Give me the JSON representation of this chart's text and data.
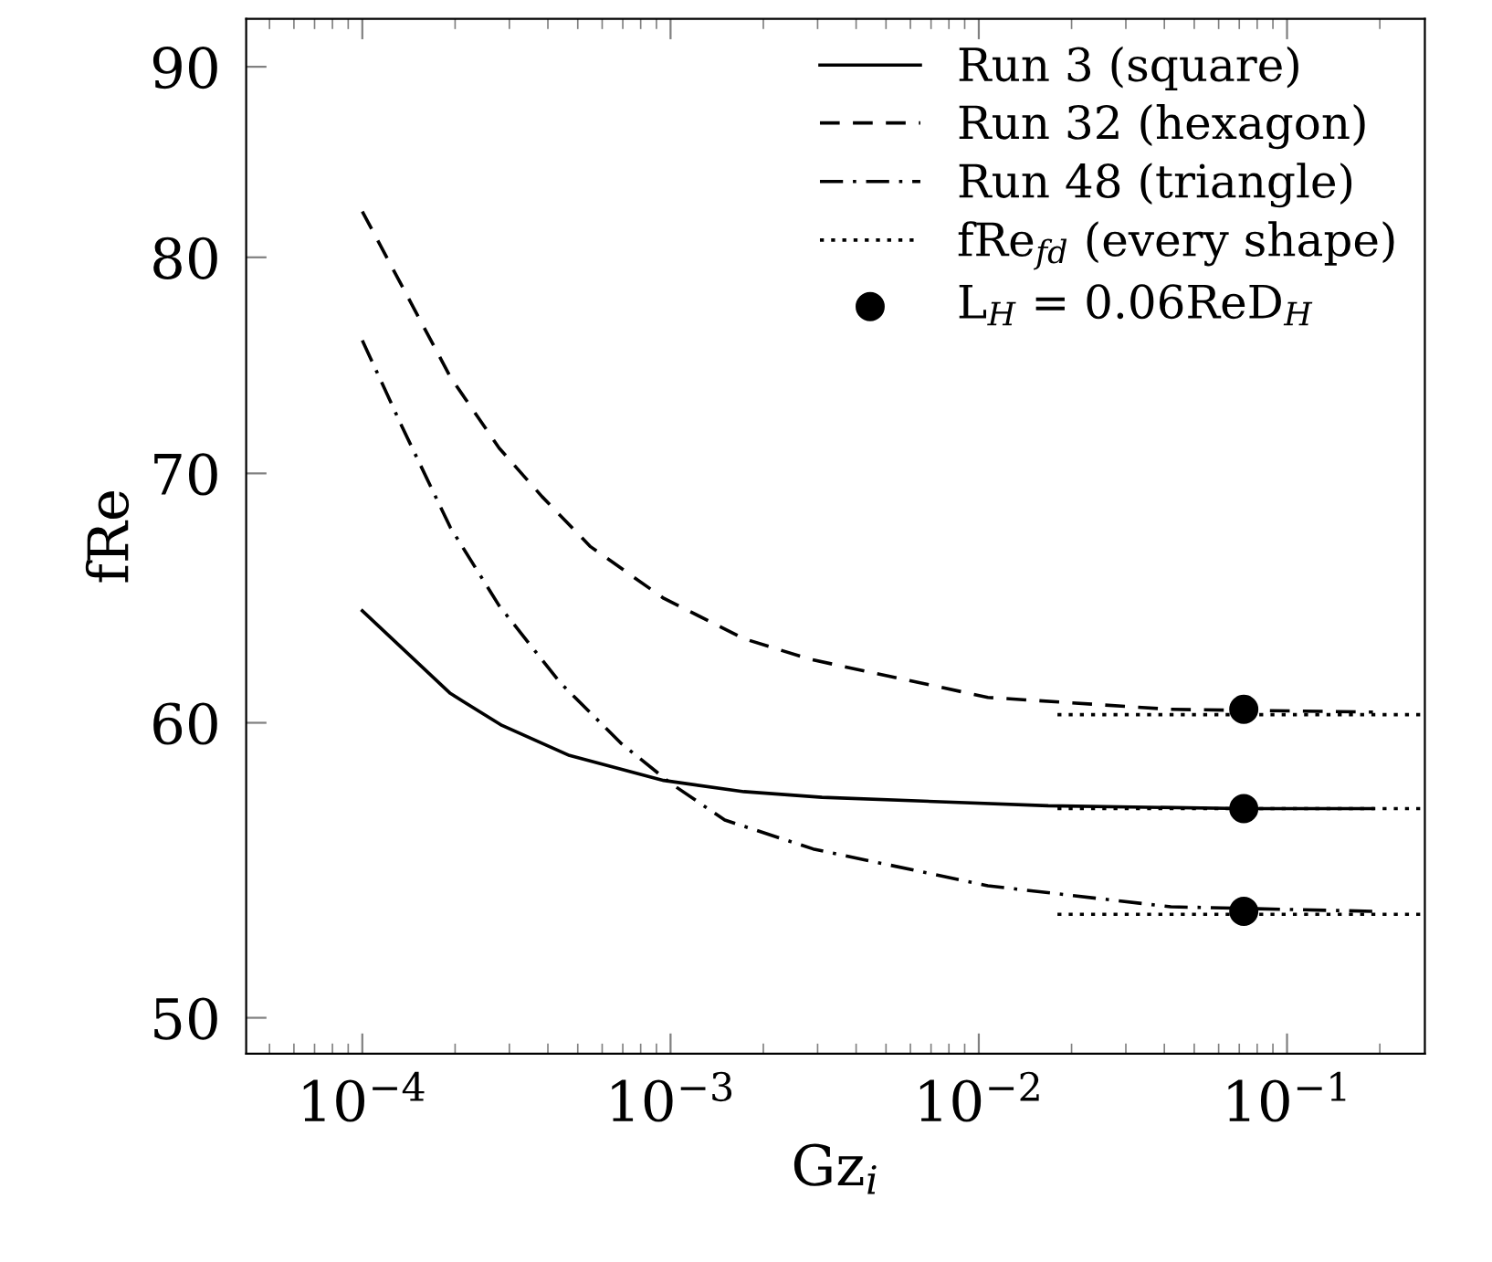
{
  "chart_data": {
    "type": "line",
    "xlabel": "Gz$_{i}$",
    "ylabel": "fRe",
    "log": "xy",
    "xlim": [
      4.2e-05,
      0.28
    ],
    "ylim": [
      48.9,
      92.7
    ],
    "xticks": [
      {
        "value": 0.0001,
        "label": "10$^{−4}$"
      },
      {
        "value": 0.001,
        "label": "10$^{−3}$"
      },
      {
        "value": 0.01,
        "label": "10$^{−2}$"
      },
      {
        "value": 0.1,
        "label": "10$^{−1}$"
      }
    ],
    "yticks": [
      50,
      60,
      70,
      80,
      90
    ],
    "grid": false,
    "legend": "top right",
    "series": [
      {
        "name": "Run 3 (square)",
        "color": "#000000",
        "line_style": "solid",
        "x": [
          0.0001,
          0.000193,
          0.000284,
          0.00047,
          0.00095,
          0.00173,
          0.0031,
          0.0168,
          0.0724,
          0.19
        ],
        "values": [
          64.3,
          61.1,
          59.9,
          58.8,
          57.9,
          57.5,
          57.3,
          57.0,
          56.9,
          56.9
        ]
      },
      {
        "name": "Run 32 (hexagon)",
        "color": "#000000",
        "line_style": "dashed",
        "x": [
          0.0001,
          0.000193,
          0.000278,
          0.000383,
          0.00055,
          0.00095,
          0.00173,
          0.00284,
          0.0107,
          0.042,
          0.19
        ],
        "values": [
          82.3,
          74.3,
          71.1,
          69.0,
          66.9,
          64.8,
          63.2,
          62.4,
          60.95,
          60.5,
          60.4
        ]
      },
      {
        "name": "Run 48 (triangle)",
        "color": "#000000",
        "line_style": "dashdot",
        "x": [
          0.0001,
          0.000134,
          0.000193,
          0.000278,
          0.000439,
          0.00069,
          0.001,
          0.0015,
          0.0029,
          0.0107,
          0.042,
          0.19
        ],
        "values": [
          76.0,
          72.1,
          67.7,
          64.5,
          61.5,
          59.25,
          57.8,
          56.5,
          55.5,
          54.25,
          53.55,
          53.4
        ]
      },
      {
        "name": "fRe$_{fd}$ (every shape)",
        "color": "#000000",
        "line_style": "dotted",
        "x": [
          0.018,
          0.28
        ],
        "values": [
          60.3,
          60.3
        ]
      },
      {
        "color": "#000000",
        "line_style": "dotted",
        "x": [
          0.018,
          0.28
        ],
        "values": [
          56.9,
          56.9
        ]
      },
      {
        "color": "#000000",
        "line_style": "dotted",
        "x": [
          0.018,
          0.28
        ],
        "values": [
          53.3,
          53.3
        ]
      },
      {
        "name": "L$_{H}$ = 0.06ReD$_{H}$",
        "type": "scatter",
        "color": "#000000",
        "marker": "circle",
        "x": [
          0.0724,
          0.0724,
          0.0724
        ],
        "values": [
          60.5,
          56.9,
          53.4
        ]
      }
    ]
  }
}
